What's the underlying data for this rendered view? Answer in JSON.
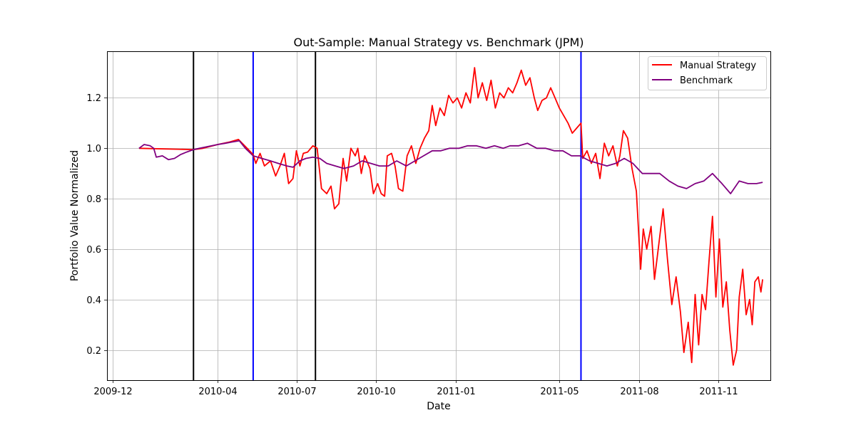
{
  "chart_data": {
    "type": "line",
    "title": "Out-Sample: Manual Strategy vs. Benchmark (JPM)",
    "xlabel": "Date",
    "ylabel": "Portfolio Value Normalized",
    "xlim": [
      "2009-11-24",
      "2011-12-31"
    ],
    "ylim": [
      0.08,
      1.385
    ],
    "x_ticks": [
      {
        "date": "2009-12-01",
        "label": "2009-12"
      },
      {
        "date": "2010-04-01",
        "label": "2010-04"
      },
      {
        "date": "2010-07-01",
        "label": "2010-07"
      },
      {
        "date": "2010-10-01",
        "label": "2010-10"
      },
      {
        "date": "2011-01-01",
        "label": "2011-01"
      },
      {
        "date": "2011-05-01",
        "label": "2011-05"
      },
      {
        "date": "2011-08-01",
        "label": "2011-08"
      },
      {
        "date": "2011-11-01",
        "label": "2011-11"
      }
    ],
    "y_ticks": [
      {
        "value": 0.2,
        "label": "0.2"
      },
      {
        "value": 0.4,
        "label": "0.4"
      },
      {
        "value": 0.6,
        "label": "0.6"
      },
      {
        "value": 0.8,
        "label": "0.8"
      },
      {
        "value": 1.0,
        "label": "1.0"
      },
      {
        "value": 1.2,
        "label": "1.2"
      }
    ],
    "grid": true,
    "legend_position": "top-right",
    "vertical_lines": [
      {
        "date": "2010-03-04",
        "color": "#000000"
      },
      {
        "date": "2010-05-12",
        "color": "#0000ff"
      },
      {
        "date": "2010-07-23",
        "color": "#000000"
      },
      {
        "date": "2011-05-26",
        "color": "#0000ff"
      }
    ],
    "series": [
      {
        "name": "Manual Strategy",
        "color": "#ff0000",
        "points": [
          [
            "2009-12-31",
            1.0
          ],
          [
            "2010-03-04",
            0.995
          ],
          [
            "2010-03-15",
            1.0
          ],
          [
            "2010-04-01",
            1.015
          ],
          [
            "2010-04-15",
            1.025
          ],
          [
            "2010-04-25",
            1.035
          ],
          [
            "2010-05-05",
            1.0
          ],
          [
            "2010-05-12",
            0.975
          ],
          [
            "2010-05-15",
            0.94
          ],
          [
            "2010-05-20",
            0.98
          ],
          [
            "2010-05-25",
            0.93
          ],
          [
            "2010-06-01",
            0.95
          ],
          [
            "2010-06-07",
            0.89
          ],
          [
            "2010-06-12",
            0.93
          ],
          [
            "2010-06-17",
            0.98
          ],
          [
            "2010-06-22",
            0.86
          ],
          [
            "2010-06-27",
            0.88
          ],
          [
            "2010-07-01",
            0.99
          ],
          [
            "2010-07-05",
            0.93
          ],
          [
            "2010-07-09",
            0.98
          ],
          [
            "2010-07-14",
            0.985
          ],
          [
            "2010-07-20",
            1.01
          ],
          [
            "2010-07-25",
            1.0
          ],
          [
            "2010-07-30",
            0.84
          ],
          [
            "2010-08-05",
            0.82
          ],
          [
            "2010-08-10",
            0.85
          ],
          [
            "2010-08-14",
            0.76
          ],
          [
            "2010-08-19",
            0.78
          ],
          [
            "2010-08-24",
            0.96
          ],
          [
            "2010-08-28",
            0.87
          ],
          [
            "2010-09-02",
            1.0
          ],
          [
            "2010-09-07",
            0.97
          ],
          [
            "2010-09-10",
            1.0
          ],
          [
            "2010-09-14",
            0.9
          ],
          [
            "2010-09-18",
            0.97
          ],
          [
            "2010-09-24",
            0.92
          ],
          [
            "2010-09-28",
            0.82
          ],
          [
            "2010-10-03",
            0.86
          ],
          [
            "2010-10-07",
            0.82
          ],
          [
            "2010-10-11",
            0.81
          ],
          [
            "2010-10-14",
            0.97
          ],
          [
            "2010-10-19",
            0.98
          ],
          [
            "2010-10-23",
            0.93
          ],
          [
            "2010-10-27",
            0.84
          ],
          [
            "2010-11-01",
            0.83
          ],
          [
            "2010-11-06",
            0.97
          ],
          [
            "2010-11-11",
            1.01
          ],
          [
            "2010-11-16",
            0.94
          ],
          [
            "2010-11-21",
            1.0
          ],
          [
            "2010-11-26",
            1.04
          ],
          [
            "2010-12-01",
            1.07
          ],
          [
            "2010-12-05",
            1.17
          ],
          [
            "2010-12-09",
            1.09
          ],
          [
            "2010-12-14",
            1.16
          ],
          [
            "2010-12-19",
            1.13
          ],
          [
            "2010-12-24",
            1.21
          ],
          [
            "2010-12-29",
            1.18
          ],
          [
            "2011-01-03",
            1.2
          ],
          [
            "2011-01-08",
            1.16
          ],
          [
            "2011-01-13",
            1.22
          ],
          [
            "2011-01-18",
            1.18
          ],
          [
            "2011-01-23",
            1.32
          ],
          [
            "2011-01-27",
            1.2
          ],
          [
            "2011-02-01",
            1.26
          ],
          [
            "2011-02-06",
            1.19
          ],
          [
            "2011-02-11",
            1.27
          ],
          [
            "2011-02-16",
            1.16
          ],
          [
            "2011-02-21",
            1.22
          ],
          [
            "2011-02-26",
            1.2
          ],
          [
            "2011-03-03",
            1.24
          ],
          [
            "2011-03-08",
            1.22
          ],
          [
            "2011-03-13",
            1.26
          ],
          [
            "2011-03-18",
            1.31
          ],
          [
            "2011-03-23",
            1.25
          ],
          [
            "2011-03-28",
            1.28
          ],
          [
            "2011-04-02",
            1.2
          ],
          [
            "2011-04-06",
            1.15
          ],
          [
            "2011-04-11",
            1.19
          ],
          [
            "2011-04-16",
            1.2
          ],
          [
            "2011-04-21",
            1.24
          ],
          [
            "2011-04-26",
            1.2
          ],
          [
            "2011-05-01",
            1.16
          ],
          [
            "2011-05-06",
            1.13
          ],
          [
            "2011-05-11",
            1.1
          ],
          [
            "2011-05-16",
            1.06
          ],
          [
            "2011-05-21",
            1.08
          ],
          [
            "2011-05-26",
            1.1
          ],
          [
            "2011-05-28",
            0.96
          ],
          [
            "2011-06-02",
            0.99
          ],
          [
            "2011-06-07",
            0.94
          ],
          [
            "2011-06-12",
            0.98
          ],
          [
            "2011-06-17",
            0.88
          ],
          [
            "2011-06-22",
            1.02
          ],
          [
            "2011-06-27",
            0.97
          ],
          [
            "2011-07-02",
            1.01
          ],
          [
            "2011-07-07",
            0.93
          ],
          [
            "2011-07-10",
            0.97
          ],
          [
            "2011-07-14",
            1.07
          ],
          [
            "2011-07-19",
            1.04
          ],
          [
            "2011-07-24",
            0.92
          ],
          [
            "2011-07-29",
            0.83
          ],
          [
            "2011-08-03",
            0.52
          ],
          [
            "2011-08-06",
            0.68
          ],
          [
            "2011-08-10",
            0.6
          ],
          [
            "2011-08-15",
            0.69
          ],
          [
            "2011-08-19",
            0.48
          ],
          [
            "2011-08-24",
            0.62
          ],
          [
            "2011-08-29",
            0.76
          ],
          [
            "2011-09-03",
            0.56
          ],
          [
            "2011-09-08",
            0.38
          ],
          [
            "2011-09-13",
            0.49
          ],
          [
            "2011-09-18",
            0.35
          ],
          [
            "2011-09-22",
            0.19
          ],
          [
            "2011-09-27",
            0.31
          ],
          [
            "2011-10-01",
            0.15
          ],
          [
            "2011-10-05",
            0.42
          ],
          [
            "2011-10-09",
            0.22
          ],
          [
            "2011-10-13",
            0.42
          ],
          [
            "2011-10-17",
            0.36
          ],
          [
            "2011-10-21",
            0.55
          ],
          [
            "2011-10-25",
            0.73
          ],
          [
            "2011-10-29",
            0.41
          ],
          [
            "2011-11-02",
            0.64
          ],
          [
            "2011-11-06",
            0.37
          ],
          [
            "2011-11-10",
            0.47
          ],
          [
            "2011-11-14",
            0.28
          ],
          [
            "2011-11-18",
            0.14
          ],
          [
            "2011-11-22",
            0.2
          ],
          [
            "2011-11-25",
            0.41
          ],
          [
            "2011-11-29",
            0.52
          ],
          [
            "2011-12-03",
            0.34
          ],
          [
            "2011-12-07",
            0.4
          ],
          [
            "2011-12-10",
            0.3
          ],
          [
            "2011-12-13",
            0.47
          ],
          [
            "2011-12-17",
            0.49
          ],
          [
            "2011-12-20",
            0.43
          ],
          [
            "2011-12-22",
            0.48
          ]
        ]
      },
      {
        "name": "Benchmark",
        "color": "#800080",
        "points": [
          [
            "2009-12-31",
            1.0
          ],
          [
            "2010-01-06",
            1.015
          ],
          [
            "2010-01-13",
            1.01
          ],
          [
            "2010-01-17",
            1.0
          ],
          [
            "2010-01-20",
            0.965
          ],
          [
            "2010-01-27",
            0.97
          ],
          [
            "2010-02-03",
            0.955
          ],
          [
            "2010-02-10",
            0.96
          ],
          [
            "2010-02-17",
            0.975
          ],
          [
            "2010-02-24",
            0.985
          ],
          [
            "2010-03-04",
            0.995
          ],
          [
            "2010-03-11",
            1.0
          ],
          [
            "2010-03-18",
            1.005
          ],
          [
            "2010-03-25",
            1.01
          ],
          [
            "2010-04-01",
            1.015
          ],
          [
            "2010-04-10",
            1.02
          ],
          [
            "2010-04-18",
            1.025
          ],
          [
            "2010-04-26",
            1.03
          ],
          [
            "2010-05-03",
            1.0
          ],
          [
            "2010-05-12",
            0.97
          ],
          [
            "2010-05-22",
            0.96
          ],
          [
            "2010-06-01",
            0.95
          ],
          [
            "2010-06-10",
            0.94
          ],
          [
            "2010-06-20",
            0.93
          ],
          [
            "2010-06-27",
            0.925
          ],
          [
            "2010-07-05",
            0.95
          ],
          [
            "2010-07-12",
            0.96
          ],
          [
            "2010-07-20",
            0.965
          ],
          [
            "2010-07-28",
            0.96
          ],
          [
            "2010-08-05",
            0.94
          ],
          [
            "2010-08-15",
            0.93
          ],
          [
            "2010-08-25",
            0.92
          ],
          [
            "2010-09-05",
            0.93
          ],
          [
            "2010-09-15",
            0.95
          ],
          [
            "2010-09-25",
            0.94
          ],
          [
            "2010-10-05",
            0.93
          ],
          [
            "2010-10-15",
            0.93
          ],
          [
            "2010-10-25",
            0.95
          ],
          [
            "2010-11-05",
            0.93
          ],
          [
            "2010-11-15",
            0.95
          ],
          [
            "2010-11-25",
            0.97
          ],
          [
            "2010-12-05",
            0.99
          ],
          [
            "2010-12-15",
            0.99
          ],
          [
            "2010-12-25",
            1.0
          ],
          [
            "2011-01-05",
            1.0
          ],
          [
            "2011-01-15",
            1.01
          ],
          [
            "2011-01-25",
            1.01
          ],
          [
            "2011-02-05",
            1.0
          ],
          [
            "2011-02-15",
            1.01
          ],
          [
            "2011-02-25",
            1.0
          ],
          [
            "2011-03-05",
            1.01
          ],
          [
            "2011-03-15",
            1.01
          ],
          [
            "2011-03-25",
            1.02
          ],
          [
            "2011-04-05",
            1.0
          ],
          [
            "2011-04-15",
            1.0
          ],
          [
            "2011-04-25",
            0.99
          ],
          [
            "2011-05-05",
            0.99
          ],
          [
            "2011-05-15",
            0.97
          ],
          [
            "2011-05-25",
            0.97
          ],
          [
            "2011-06-05",
            0.95
          ],
          [
            "2011-06-15",
            0.94
          ],
          [
            "2011-06-25",
            0.93
          ],
          [
            "2011-07-05",
            0.94
          ],
          [
            "2011-07-15",
            0.96
          ],
          [
            "2011-07-25",
            0.94
          ],
          [
            "2011-08-05",
            0.9
          ],
          [
            "2011-08-15",
            0.9
          ],
          [
            "2011-08-25",
            0.9
          ],
          [
            "2011-09-05",
            0.87
          ],
          [
            "2011-09-15",
            0.85
          ],
          [
            "2011-09-25",
            0.84
          ],
          [
            "2011-10-05",
            0.86
          ],
          [
            "2011-10-15",
            0.87
          ],
          [
            "2011-10-25",
            0.9
          ],
          [
            "2011-11-05",
            0.86
          ],
          [
            "2011-11-15",
            0.82
          ],
          [
            "2011-11-25",
            0.87
          ],
          [
            "2011-12-05",
            0.86
          ],
          [
            "2011-12-15",
            0.86
          ],
          [
            "2011-12-22",
            0.865
          ]
        ]
      }
    ]
  }
}
